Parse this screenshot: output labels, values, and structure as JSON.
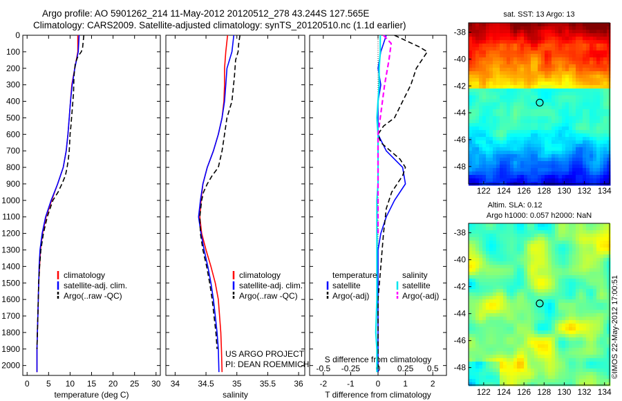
{
  "header": {
    "title_line1": "Argo profile: AO 5901262_214 11-May-2012 20120512_278 43.244S 127.565E",
    "title_line2": "Climatology: CARS2009. Satellite-adjusted climatology: synTS_20120510.nc (1.1d earlier)"
  },
  "colors": {
    "climatology": "#ff0000",
    "satellite": "#0000ff",
    "argo": "#000000",
    "s_satellite": "#00e5ee",
    "s_argo": "#ff00ff"
  },
  "chart_data": [
    {
      "type": "line",
      "name": "temperature-profile",
      "xlabel": "temperature (deg C)",
      "xlim": [
        -1,
        31
      ],
      "ylim": [
        0,
        2060
      ],
      "xticks": [
        0,
        5,
        10,
        15,
        20,
        25,
        30
      ],
      "yticks": [
        0,
        100,
        200,
        300,
        400,
        500,
        600,
        700,
        800,
        900,
        1000,
        1100,
        1200,
        1300,
        1400,
        1500,
        1600,
        1700,
        1800,
        1900,
        2000
      ],
      "legend": [
        "climatology",
        "satellite-adj. clim.",
        "Argo(..raw -QC)"
      ],
      "series": [
        {
          "name": "climatology",
          "x": [
            11.8,
            11.8,
            11.1,
            10.4,
            10.1,
            9.8,
            9.5,
            9.1,
            8.4,
            7.1,
            5.7,
            4.4,
            3.6,
            3.1,
            2.9,
            2.7,
            2.6,
            2.5,
            2.4,
            2.3,
            2.3
          ],
          "depth": [
            0,
            100,
            200,
            300,
            400,
            500,
            600,
            700,
            800,
            900,
            1000,
            1100,
            1200,
            1300,
            1400,
            1500,
            1600,
            1700,
            1800,
            1900,
            2040
          ]
        },
        {
          "name": "satellite-adj. clim.",
          "x": [
            12.1,
            11.9,
            11.1,
            10.5,
            10.1,
            9.8,
            9.5,
            9.1,
            8.4,
            7.1,
            5.6,
            4.3,
            3.5,
            3.0,
            2.8,
            2.7,
            2.6,
            2.5,
            2.4,
            2.3,
            2.3
          ],
          "depth": [
            0,
            100,
            200,
            300,
            400,
            500,
            600,
            700,
            800,
            900,
            1000,
            1100,
            1200,
            1300,
            1400,
            1500,
            1600,
            1700,
            1800,
            1900,
            2040
          ]
        },
        {
          "name": "Argo(..raw -QC)",
          "x": [
            13.2,
            13.0,
            12.9,
            12.6,
            11.8,
            11.2,
            10.9,
            10.8,
            10.5,
            10.2,
            10.0,
            9.9,
            9.8,
            9.6,
            9.3,
            8.9,
            8.1,
            7.2,
            6.0,
            4.7,
            3.8,
            3.2,
            2.9,
            2.7,
            2.6,
            2.5,
            2.4,
            2.3
          ],
          "depth": [
            0,
            50,
            80,
            100,
            130,
            170,
            250,
            350,
            450,
            550,
            600,
            650,
            700,
            750,
            800,
            850,
            900,
            950,
            1000,
            1100,
            1200,
            1300,
            1400,
            1500,
            1600,
            1700,
            1800,
            1900
          ]
        }
      ]
    },
    {
      "type": "line",
      "name": "salinity-profile",
      "xlabel": "salinity",
      "xlim": [
        33.85,
        36.1
      ],
      "ylim": [
        0,
        2060
      ],
      "xticks": [
        34,
        34.5,
        35,
        35.5,
        36
      ],
      "legend": [
        "climatology",
        "satellite-adj. clim.",
        "Argo(..raw -QC)"
      ],
      "series": [
        {
          "name": "climatology",
          "x": [
            34.85,
            34.82,
            34.8,
            34.8,
            34.79,
            34.76,
            34.7,
            34.62,
            34.52,
            34.45,
            34.42,
            34.4,
            34.43,
            34.5,
            34.58,
            34.65,
            34.7,
            34.72,
            34.74,
            34.75,
            34.76
          ],
          "depth": [
            0,
            100,
            200,
            300,
            400,
            500,
            600,
            700,
            800,
            900,
            1000,
            1100,
            1200,
            1300,
            1400,
            1500,
            1600,
            1700,
            1800,
            1900,
            2040
          ]
        },
        {
          "name": "satellite-adj. clim.",
          "x": [
            34.95,
            34.92,
            34.84,
            34.82,
            34.8,
            34.76,
            34.7,
            34.62,
            34.52,
            34.45,
            34.41,
            34.38,
            34.42,
            34.47,
            34.53,
            34.58,
            34.62,
            34.65,
            34.68,
            34.7,
            34.71
          ],
          "depth": [
            0,
            100,
            200,
            300,
            400,
            500,
            600,
            700,
            800,
            900,
            1000,
            1100,
            1200,
            1300,
            1400,
            1500,
            1600,
            1700,
            1800,
            1900,
            2040
          ]
        },
        {
          "name": "Argo(..raw -QC)",
          "x": [
            35.05,
            35.03,
            35.02,
            34.98,
            34.96,
            34.92,
            34.84,
            34.8,
            34.76,
            34.7,
            34.6,
            34.52,
            34.46,
            34.43,
            34.4,
            34.41,
            34.45,
            34.51,
            34.56,
            34.6,
            34.63,
            34.66,
            34.68
          ],
          "depth": [
            0,
            50,
            100,
            150,
            250,
            400,
            500,
            600,
            700,
            800,
            850,
            900,
            950,
            1000,
            1100,
            1200,
            1300,
            1400,
            1500,
            1600,
            1700,
            1800,
            1900
          ]
        }
      ]
    },
    {
      "type": "line",
      "name": "difference-profile",
      "xlabel": "T difference from climatology",
      "xlabel_top": "S difference from climatology",
      "xlim": [
        -2.5,
        2.5
      ],
      "ylim": [
        0,
        2060
      ],
      "xticks": [
        -2,
        -1,
        0,
        1,
        2
      ],
      "xticks_s": [
        "-0.5",
        "-0.25",
        "0",
        "0.25",
        "0.5"
      ],
      "legend": {
        "left_title": "temperature",
        "right_title": "salinity",
        "left": [
          "satellite",
          "Argo(-adj)"
        ],
        "right": [
          "satellite",
          "Argo(-adj)"
        ]
      },
      "series": [
        {
          "name": "temperature satellite",
          "x": [
            0.3,
            0.1,
            0.0,
            0.1,
            0.0,
            0.0,
            0.0,
            0.3,
            0.9,
            1.0,
            0.6,
            0.3,
            0.1,
            0.0,
            0.0,
            0.0,
            0.0,
            0.0,
            0.0,
            0.0,
            0.0
          ],
          "depth": [
            0,
            100,
            200,
            300,
            400,
            500,
            600,
            700,
            800,
            900,
            1000,
            1100,
            1200,
            1300,
            1400,
            1500,
            1600,
            1700,
            1800,
            1900,
            2040
          ]
        },
        {
          "name": "temperature Argo(-adj)",
          "x": [
            0.6,
            1.5,
            1.8,
            1.4,
            1.2,
            0.9,
            0.6,
            0.2,
            0.0,
            0.1,
            0.8,
            1.0,
            0.9,
            0.5,
            0.3,
            0.2,
            0.1,
            0.0,
            0.0,
            0.0,
            0.0
          ],
          "depth": [
            0,
            70,
            100,
            200,
            300,
            400,
            500,
            550,
            600,
            650,
            750,
            800,
            850,
            950,
            1050,
            1200,
            1400,
            1600,
            1800,
            1950,
            2040
          ]
        },
        {
          "name": "salinity satellite",
          "x": [
            0.02,
            0.02,
            0.01,
            0.01,
            0.0,
            -0.01,
            0.0,
            0.0,
            0.0,
            0.0,
            -0.01,
            -0.01,
            -0.01,
            -0.01,
            -0.02,
            -0.01,
            -0.01
          ],
          "depth": [
            0,
            100,
            200,
            300,
            400,
            500,
            600,
            700,
            800,
            900,
            1000,
            1200,
            1400,
            1600,
            1800,
            1900,
            2040
          ]
        },
        {
          "name": "salinity Argo(-adj)",
          "x": [
            0.05,
            0.12,
            0.1,
            0.06,
            0.03,
            0.0,
            0.0,
            0.0,
            0.0,
            0.0
          ],
          "depth": [
            0,
            50,
            150,
            300,
            450,
            600,
            800,
            1000,
            1100,
            1200
          ]
        }
      ]
    },
    {
      "type": "heatmap",
      "name": "sst-map",
      "title": "sat. SST: 13 Argo: 13",
      "xticks": [
        122,
        124,
        126,
        128,
        130,
        132,
        134
      ],
      "yticks": [
        -38,
        -40,
        -42,
        -44,
        -46,
        -48
      ],
      "xlim": [
        120.5,
        134.5
      ],
      "ylim": [
        -49.3,
        -37.3
      ],
      "marker": [
        127.565,
        -43.244
      ]
    },
    {
      "type": "heatmap",
      "name": "sla-map",
      "title_line1": "Altim. SLA: 0.12",
      "title_line2": "Argo h1000: 0.057 h2000: NaN",
      "xticks": [
        122,
        124,
        126,
        128,
        130,
        132,
        134
      ],
      "yticks": [
        -38,
        -40,
        -42,
        -44,
        -46,
        -48
      ],
      "xlim": [
        120.5,
        134.5
      ],
      "ylim": [
        -49.3,
        -37.3
      ],
      "marker": [
        127.565,
        -43.244
      ]
    }
  ],
  "annotations": {
    "project_line1": "US ARGO PROJECT",
    "project_line2": "PI: DEAN ROEMMICH",
    "credit": "©IMOS 22-May-2012 17:00:51"
  }
}
